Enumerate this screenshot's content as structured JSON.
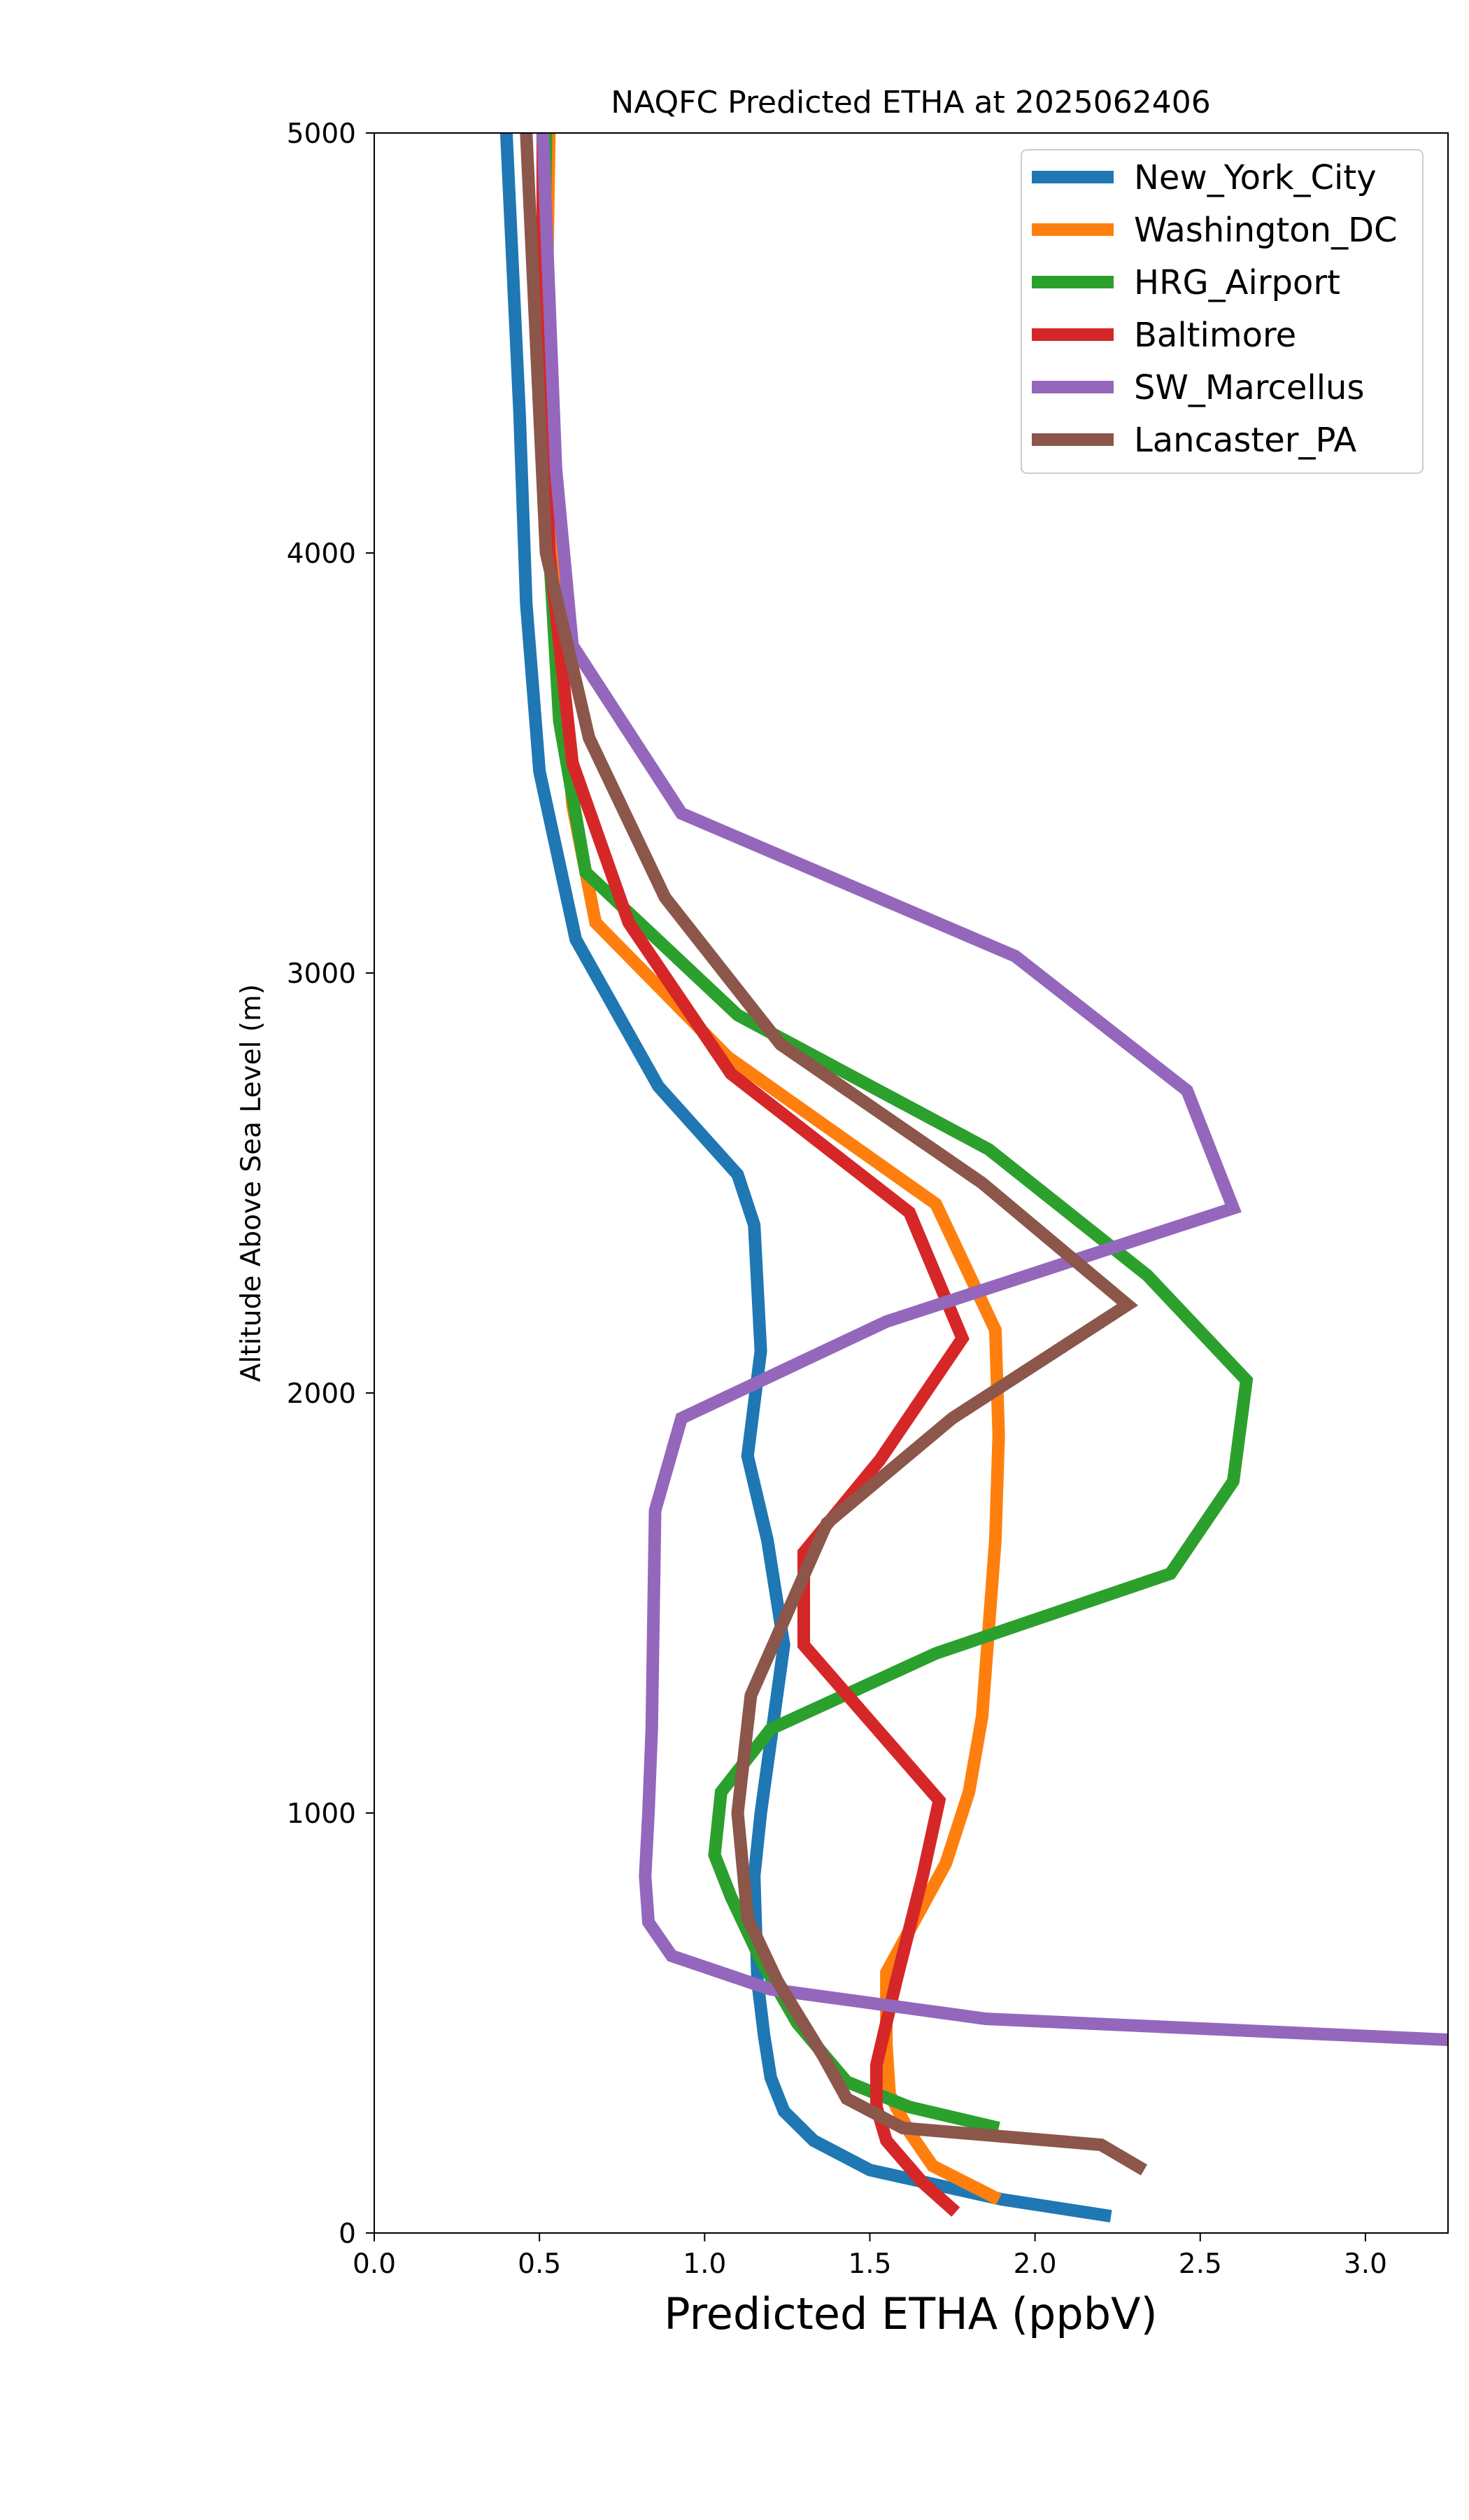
{
  "chart_data": {
    "type": "line",
    "title": "NAQFC Predicted ETHA at 2025062406",
    "xlabel": "Predicted ETHA (ppbV)",
    "ylabel": "Altitude Above Sea Level (m)",
    "xlim": [
      0.0,
      3.25
    ],
    "ylim": [
      0,
      5000
    ],
    "x_ticks": [
      "0.0",
      "0.5",
      "1.0",
      "1.5",
      "2.0",
      "2.5",
      "3.0"
    ],
    "y_ticks": [
      "0",
      "1000",
      "2000",
      "3000",
      "4000",
      "5000"
    ],
    "grid": false,
    "legend_position": "top-right",
    "series": [
      {
        "name": "New_York_City",
        "color": "#1f77b4",
        "points": [
          [
            2.23,
            40
          ],
          [
            1.9,
            80
          ],
          [
            1.5,
            150
          ],
          [
            1.33,
            220
          ],
          [
            1.24,
            290
          ],
          [
            1.2,
            370
          ],
          [
            1.18,
            470
          ],
          [
            1.16,
            600
          ],
          [
            1.15,
            850
          ],
          [
            1.17,
            1000
          ],
          [
            1.24,
            1400
          ],
          [
            1.19,
            1650
          ],
          [
            1.13,
            1850
          ],
          [
            1.17,
            2100
          ],
          [
            1.15,
            2400
          ],
          [
            1.1,
            2520
          ],
          [
            0.86,
            2730
          ],
          [
            0.61,
            3080
          ],
          [
            0.5,
            3480
          ],
          [
            0.46,
            3880
          ],
          [
            0.44,
            4330
          ],
          [
            0.4,
            5000
          ]
        ]
      },
      {
        "name": "Washington_DC",
        "color": "#ff7f0e",
        "points": [
          [
            1.89,
            80
          ],
          [
            1.69,
            160
          ],
          [
            1.62,
            240
          ],
          [
            1.56,
            330
          ],
          [
            1.55,
            450
          ],
          [
            1.55,
            620
          ],
          [
            1.73,
            880
          ],
          [
            1.8,
            1050
          ],
          [
            1.84,
            1230
          ],
          [
            1.88,
            1650
          ],
          [
            1.89,
            1900
          ],
          [
            1.88,
            2150
          ],
          [
            1.7,
            2450
          ],
          [
            1.07,
            2800
          ],
          [
            0.67,
            3120
          ],
          [
            0.6,
            3400
          ],
          [
            0.54,
            4000
          ],
          [
            0.52,
            4500
          ],
          [
            0.53,
            5000
          ]
        ]
      },
      {
        "name": "HRG_Airport",
        "color": "#2ca02c",
        "points": [
          [
            1.89,
            250
          ],
          [
            1.62,
            300
          ],
          [
            1.43,
            360
          ],
          [
            1.28,
            500
          ],
          [
            1.17,
            650
          ],
          [
            1.08,
            800
          ],
          [
            1.03,
            900
          ],
          [
            1.05,
            1050
          ],
          [
            1.2,
            1200
          ],
          [
            1.7,
            1380
          ],
          [
            2.41,
            1570
          ],
          [
            2.6,
            1790
          ],
          [
            2.64,
            2030
          ],
          [
            2.34,
            2280
          ],
          [
            1.86,
            2580
          ],
          [
            1.1,
            2900
          ],
          [
            0.64,
            3240
          ],
          [
            0.56,
            3600
          ],
          [
            0.53,
            4000
          ],
          [
            0.51,
            4500
          ],
          [
            0.52,
            5000
          ]
        ]
      },
      {
        "name": "Baltimore",
        "color": "#d62728",
        "points": [
          [
            1.76,
            50
          ],
          [
            1.66,
            120
          ],
          [
            1.55,
            220
          ],
          [
            1.52,
            300
          ],
          [
            1.52,
            400
          ],
          [
            1.58,
            600
          ],
          [
            1.66,
            850
          ],
          [
            1.71,
            1030
          ],
          [
            1.3,
            1400
          ],
          [
            1.3,
            1620
          ],
          [
            1.53,
            1840
          ],
          [
            1.78,
            2130
          ],
          [
            1.62,
            2430
          ],
          [
            1.08,
            2760
          ],
          [
            0.77,
            3120
          ],
          [
            0.6,
            3500
          ],
          [
            0.53,
            4000
          ],
          [
            0.51,
            4500
          ],
          [
            0.51,
            5000
          ]
        ]
      },
      {
        "name": "SW_Marcellus",
        "color": "#9467bd",
        "points": [
          [
            3.25,
            460
          ],
          [
            1.85,
            510
          ],
          [
            1.48,
            550
          ],
          [
            1.2,
            580
          ],
          [
            0.9,
            660
          ],
          [
            0.83,
            740
          ],
          [
            0.82,
            850
          ],
          [
            0.83,
            1000
          ],
          [
            0.84,
            1200
          ],
          [
            0.85,
            1720
          ],
          [
            0.93,
            1940
          ],
          [
            1.55,
            2170
          ],
          [
            2.6,
            2440
          ],
          [
            2.46,
            2720
          ],
          [
            1.94,
            3040
          ],
          [
            0.93,
            3380
          ],
          [
            0.6,
            3780
          ],
          [
            0.55,
            4200
          ],
          [
            0.51,
            5000
          ]
        ]
      },
      {
        "name": "Lancaster_PA",
        "color": "#8c564b",
        "points": [
          [
            2.33,
            150
          ],
          [
            2.2,
            210
          ],
          [
            1.6,
            250
          ],
          [
            1.43,
            320
          ],
          [
            1.36,
            420
          ],
          [
            1.22,
            600
          ],
          [
            1.13,
            750
          ],
          [
            1.1,
            1000
          ],
          [
            1.14,
            1280
          ],
          [
            1.37,
            1690
          ],
          [
            1.75,
            1940
          ],
          [
            2.28,
            2210
          ],
          [
            1.84,
            2500
          ],
          [
            1.23,
            2830
          ],
          [
            0.88,
            3180
          ],
          [
            0.65,
            3560
          ],
          [
            0.52,
            4000
          ],
          [
            0.49,
            4500
          ],
          [
            0.46,
            5000
          ]
        ]
      }
    ]
  }
}
